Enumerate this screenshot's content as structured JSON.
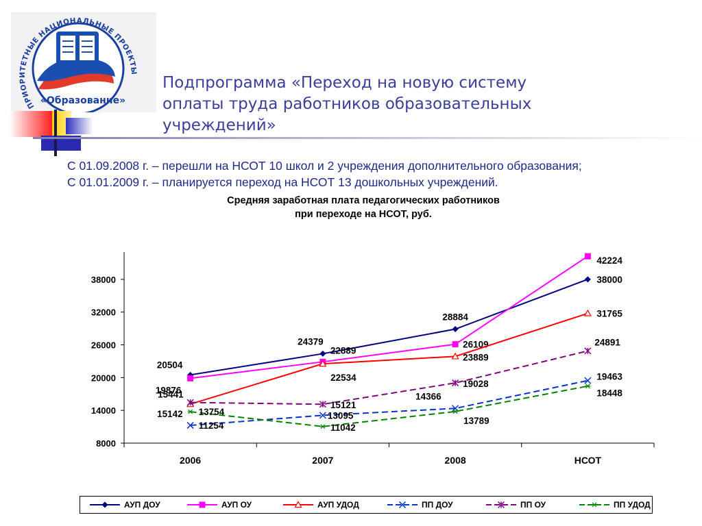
{
  "logo": {
    "ring_text": "ПРИОРИТЕТНЫЕ НАЦИОНАЛЬНЫЕ ПРОЕКТЫ",
    "label": "«Образование»"
  },
  "title_lines": [
    "Подпрограмма «Переход на новую систему",
    "оплаты труда работников образовательных",
    "учреждений»"
  ],
  "info_lines": [
    "С 01.09.2008 г. – перешли на НСОТ 10 школ и 2 учреждения дополнительного образования;",
    "С 01.01.2009 г. – планируется переход на НСОТ 13 дошкольных учреждений."
  ],
  "colors": {
    "title_text": "#3a3f9a",
    "info_text": "#1f2a86"
  },
  "chart_data": {
    "type": "line",
    "title_lines": [
      "Средняя заработная плата педагогических работников",
      "при переходе на НСОТ, руб."
    ],
    "categories": [
      "2006",
      "2007",
      "2008",
      "НСОТ"
    ],
    "yticks": [
      8000,
      14000,
      20000,
      26000,
      32000,
      38000
    ],
    "ylim": [
      8000,
      43000
    ],
    "grid": false,
    "legend": "bottom",
    "series": [
      {
        "name": "АУП ДОУ",
        "values": [
          20504,
          24379,
          28884,
          38000
        ],
        "color": "#000080",
        "marker": "diamond",
        "dash": "solid"
      },
      {
        "name": "АУП ОУ",
        "values": [
          19876,
          22889,
          26109,
          42224
        ],
        "color": "#ff00ff",
        "marker": "square",
        "dash": "solid"
      },
      {
        "name": "АУП УДОД",
        "values": [
          15142,
          22534,
          23889,
          31765
        ],
        "color": "#ff0000",
        "marker": "triangle",
        "dash": "solid"
      },
      {
        "name": "ПП ДОУ",
        "values": [
          11254,
          13095,
          14366,
          19463
        ],
        "color": "#0033cc",
        "marker": "x",
        "dash": "dashed"
      },
      {
        "name": "ПП ОУ",
        "values": [
          15441,
          15121,
          19028,
          24891
        ],
        "color": "#800080",
        "marker": "asterisk",
        "dash": "dashed"
      },
      {
        "name": "ПП УДОД",
        "values": [
          13754,
          11042,
          13789,
          18448
        ],
        "color": "#008000",
        "marker": "star",
        "dash": "dashed"
      }
    ]
  }
}
